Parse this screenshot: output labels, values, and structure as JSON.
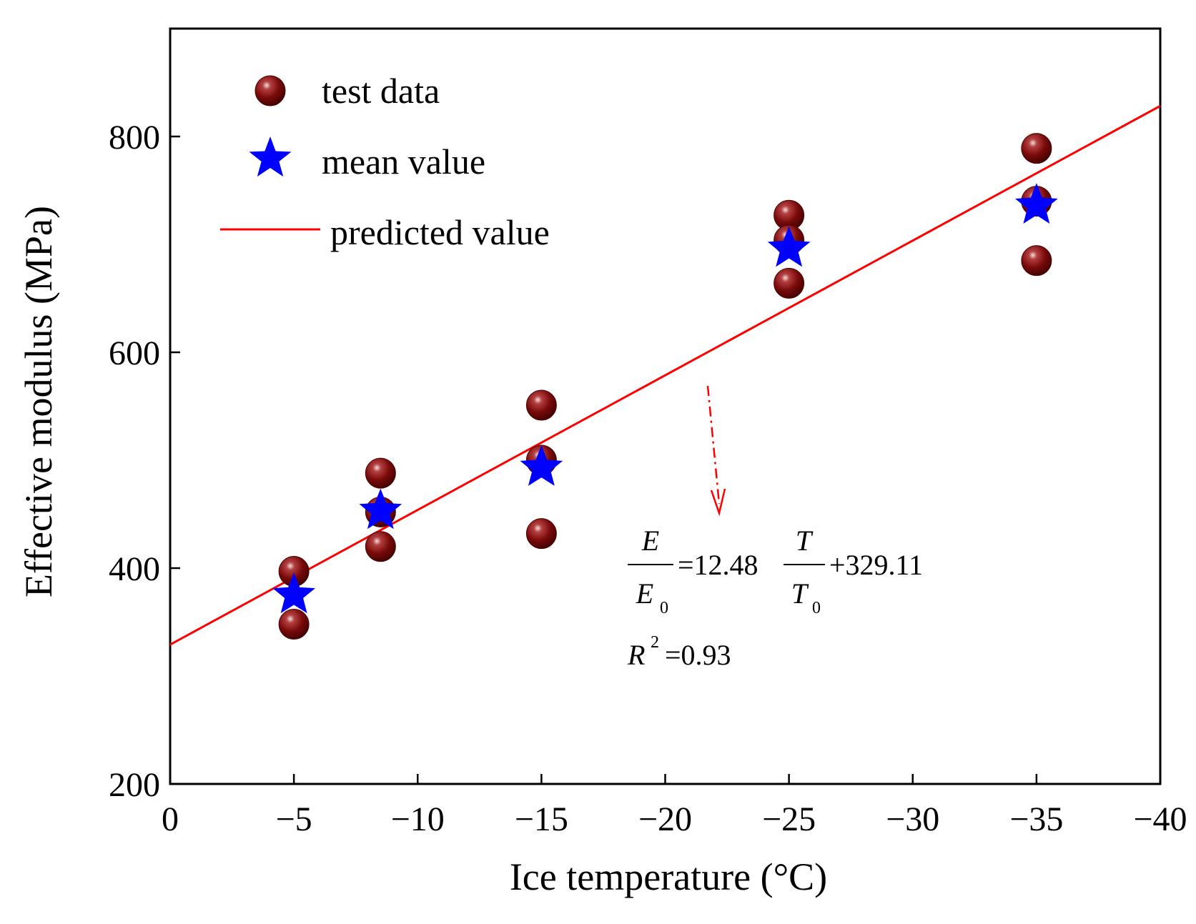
{
  "chart_data": {
    "type": "scatter",
    "xlabel": "Ice temperature (°C)",
    "ylabel": "Effective modulus (MPa)",
    "xlim": [
      0,
      -40
    ],
    "ylim": [
      200,
      900
    ],
    "x_ticks": [
      0,
      -5,
      -10,
      -15,
      -20,
      -25,
      -30,
      -35,
      -40
    ],
    "x_tick_labels": [
      "0",
      "−5",
      "−10",
      "−15",
      "−20",
      "−25",
      "−30",
      "−35",
      "−40"
    ],
    "y_ticks": [
      200,
      400,
      600,
      800
    ],
    "y_tick_labels": [
      "200",
      "400",
      "600",
      "800"
    ],
    "grid": false,
    "legend_position": "top-left",
    "series": [
      {
        "name": "test data",
        "kind": "scatter",
        "marker": "sphere",
        "color": "#7a0a0a",
        "points": [
          {
            "x": -5,
            "y": 397
          },
          {
            "x": -5,
            "y": 348
          },
          {
            "x": -8.5,
            "y": 488
          },
          {
            "x": -8.5,
            "y": 452
          },
          {
            "x": -8.5,
            "y": 420
          },
          {
            "x": -15,
            "y": 551
          },
          {
            "x": -15,
            "y": 500
          },
          {
            "x": -15,
            "y": 432
          },
          {
            "x": -25,
            "y": 727
          },
          {
            "x": -25,
            "y": 704
          },
          {
            "x": -25,
            "y": 664
          },
          {
            "x": -35,
            "y": 789
          },
          {
            "x": -35,
            "y": 740
          },
          {
            "x": -35,
            "y": 685
          }
        ]
      },
      {
        "name": "mean value",
        "kind": "scatter",
        "marker": "star",
        "color": "#0000ff",
        "points": [
          {
            "x": -5,
            "y": 375
          },
          {
            "x": -8.5,
            "y": 453
          },
          {
            "x": -15,
            "y": 493
          },
          {
            "x": -25,
            "y": 696
          },
          {
            "x": -35,
            "y": 736
          }
        ]
      },
      {
        "name": "predicted value",
        "kind": "line",
        "color": "#ff0000",
        "points": [
          {
            "x": 0,
            "y": 329.11
          },
          {
            "x": -40,
            "y": 828.31
          }
        ]
      }
    ],
    "annotation": {
      "equation": {
        "lhs_num": "E",
        "lhs_den": "E",
        "lhs_den_sub": "0",
        "middle": "=12.48",
        "rhs_num": "T",
        "rhs_den": "T",
        "rhs_den_sub": "0",
        "tail": "+329.11"
      },
      "r2_label": "R",
      "r2_sup": "2",
      "r2_value": "=0.93",
      "arrow_color": "#ff0000"
    }
  }
}
